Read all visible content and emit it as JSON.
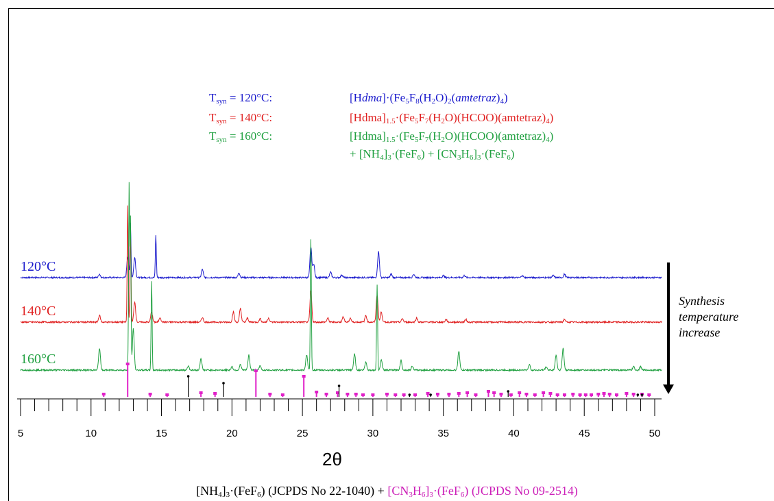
{
  "chart_data": {
    "type": "line",
    "xlabel": "2θ",
    "xlim": [
      5,
      51
    ],
    "xticks": [
      5,
      10,
      15,
      20,
      25,
      30,
      35,
      40,
      45,
      50
    ],
    "series": [
      {
        "name": "120°C",
        "color": "#1a1acc",
        "peaks": [
          [
            10.6,
            5
          ],
          [
            12.6,
            30
          ],
          [
            12.8,
            80
          ],
          [
            13.1,
            30
          ],
          [
            14.6,
            62
          ],
          [
            17.9,
            12
          ],
          [
            20.5,
            7
          ],
          [
            25.6,
            45
          ],
          [
            25.8,
            20
          ],
          [
            27.0,
            8
          ],
          [
            27.8,
            4
          ],
          [
            30.4,
            38
          ],
          [
            31.3,
            5
          ],
          [
            32.9,
            5
          ],
          [
            35.0,
            3
          ],
          [
            36.5,
            3
          ],
          [
            40.6,
            3
          ],
          [
            42.8,
            3
          ],
          [
            43.6,
            5
          ]
        ]
      },
      {
        "name": "140°C",
        "color": "#e02020",
        "peaks": [
          [
            10.6,
            10
          ],
          [
            12.6,
            170
          ],
          [
            12.8,
            130
          ],
          [
            13.1,
            30
          ],
          [
            14.3,
            15
          ],
          [
            14.9,
            7
          ],
          [
            17.9,
            7
          ],
          [
            20.1,
            15
          ],
          [
            20.6,
            20
          ],
          [
            21.1,
            6
          ],
          [
            22.0,
            5
          ],
          [
            22.6,
            6
          ],
          [
            25.6,
            45
          ],
          [
            26.8,
            6
          ],
          [
            27.9,
            8
          ],
          [
            28.4,
            6
          ],
          [
            29.5,
            10
          ],
          [
            30.3,
            40
          ],
          [
            30.6,
            15
          ],
          [
            32.1,
            5
          ],
          [
            33.1,
            6
          ],
          [
            35.2,
            4
          ],
          [
            36.6,
            4
          ],
          [
            43.6,
            4
          ]
        ]
      },
      {
        "name": "160°C",
        "color": "#20a040",
        "peaks": [
          [
            10.6,
            32
          ],
          [
            12.7,
            270
          ],
          [
            12.8,
            220
          ],
          [
            13.0,
            60
          ],
          [
            14.3,
            130
          ],
          [
            16.9,
            6
          ],
          [
            17.8,
            17
          ],
          [
            20.0,
            5
          ],
          [
            20.6,
            8
          ],
          [
            21.2,
            22
          ],
          [
            22.0,
            6
          ],
          [
            25.3,
            22
          ],
          [
            25.6,
            190
          ],
          [
            28.7,
            24
          ],
          [
            29.5,
            12
          ],
          [
            30.3,
            125
          ],
          [
            30.6,
            15
          ],
          [
            32.0,
            14
          ],
          [
            32.8,
            6
          ],
          [
            36.1,
            28
          ],
          [
            41.1,
            8
          ],
          [
            42.3,
            5
          ],
          [
            43.0,
            22
          ],
          [
            43.5,
            32
          ],
          [
            48.5,
            5
          ],
          [
            49.0,
            5
          ]
        ]
      }
    ],
    "reference_ammonium": {
      "color": "#000000",
      "x": [
        16.9,
        19.4,
        27.6,
        32.6,
        34.1,
        39.6,
        48.8,
        49.1
      ],
      "h": [
        30,
        20,
        16,
        3,
        3,
        8,
        3,
        3
      ]
    },
    "reference_guanidinium": {
      "color": "#e020c8",
      "x": [
        10.9,
        12.6,
        14.2,
        15.4,
        17.8,
        18.8,
        21.7,
        22.7,
        23.6,
        25.1,
        26.0,
        26.7,
        27.5,
        28.2,
        28.8,
        29.3,
        30.0,
        31.0,
        31.6,
        32.2,
        33.0,
        33.9,
        34.6,
        35.4,
        36.1,
        36.7,
        37.3,
        38.2,
        38.6,
        39.1,
        39.8,
        40.4,
        40.9,
        41.5,
        42.1,
        42.6,
        43.1,
        43.6,
        44.2,
        44.7,
        45.1,
        45.5,
        46.0,
        46.4,
        46.8,
        47.3,
        48.0,
        48.5,
        49.1,
        49.6
      ],
      "h": [
        4,
        48,
        4,
        3,
        6,
        5,
        38,
        4,
        3,
        30,
        7,
        4,
        6,
        4,
        4,
        3,
        3,
        4,
        3,
        3,
        3,
        5,
        4,
        4,
        5,
        6,
        3,
        8,
        6,
        4,
        3,
        6,
        4,
        3,
        6,
        5,
        3,
        3,
        4,
        3,
        3,
        3,
        4,
        5,
        4,
        3,
        5,
        4,
        4,
        3
      ]
    }
  },
  "legend": {
    "r1_temp": "T",
    "r1_sub": "syn",
    "r1_val": " = 120°C:",
    "r1_formula_a": "[H",
    "r1_formula_b": "dma",
    "r1_formula_c": "]·(Fe",
    "r1_formula_d": "5",
    "r1_formula_e": "F",
    "r1_formula_f": "8",
    "r1_formula_g": "(H",
    "r1_formula_h": "2",
    "r1_formula_i": "O)",
    "r1_formula_j": "2",
    "r1_formula_k": "(",
    "r1_formula_l": "amtetraz",
    "r1_formula_m": ")",
    "r1_formula_n": "4",
    "r1_formula_o": ")",
    "r2_temp": "T",
    "r2_sub": "syn",
    "r2_val": " = 140°C:",
    "r2_formula_a": "[Hdma]",
    "r2_formula_b": "1.5",
    "r2_formula_c": "·(Fe",
    "r2_formula_d": "5",
    "r2_formula_e": "F",
    "r2_formula_f": "7",
    "r2_formula_g": "(H",
    "r2_formula_h": "2",
    "r2_formula_i": "O)(HCOO)(amtetraz)",
    "r2_formula_j": "4",
    "r2_formula_k": ")",
    "r3_temp": "T",
    "r3_sub": "syn",
    "r3_val": " = 160°C:",
    "r3_formula_a": "[Hdma]",
    "r3_formula_b": "1.5",
    "r3_formula_c": "·(Fe",
    "r3_formula_d": "5",
    "r3_formula_e": "F",
    "r3_formula_f": "7",
    "r3_formula_g": "(H",
    "r3_formula_h": "2",
    "r3_formula_i": "O)(HCOO)(amtetraz)",
    "r3_formula_j": "4",
    "r3_formula_k": ")",
    "r4_a": "+ [NH",
    "r4_b": "4",
    "r4_c": "]",
    "r4_d": "3",
    "r4_e": "·(FeF",
    "r4_f": "6",
    "r4_g": ") + [CN",
    "r4_h": "3",
    "r4_i": "H",
    "r4_j": "6",
    "r4_k": "]",
    "r4_l": "3",
    "r4_m": "·(FeF",
    "r4_n": "6",
    "r4_o": ")"
  },
  "curve_labels": {
    "c120": "120°C",
    "c140": "140°C",
    "c160": "160°C"
  },
  "annotation": {
    "line1": "Synthesis",
    "line2": "temperature",
    "line3": "increase"
  },
  "bottom": {
    "a": "[NH",
    "b": "4",
    "c": "]",
    "d": "3",
    "e": "·(FeF",
    "f": "6",
    "g": ") (JCPDS No 22-1040) + ",
    "h": "[CN",
    "i": "3",
    "j": "H",
    "k": "6",
    "l": "]",
    "m": "3",
    "n": "·(FeF",
    "o": "6",
    "p": ") (JCPDS No 09-2514)"
  },
  "colors": {
    "c120": "#1a1acc",
    "c140": "#e02020",
    "c160": "#20a040",
    "guanidinium": "#cc1fb8"
  }
}
